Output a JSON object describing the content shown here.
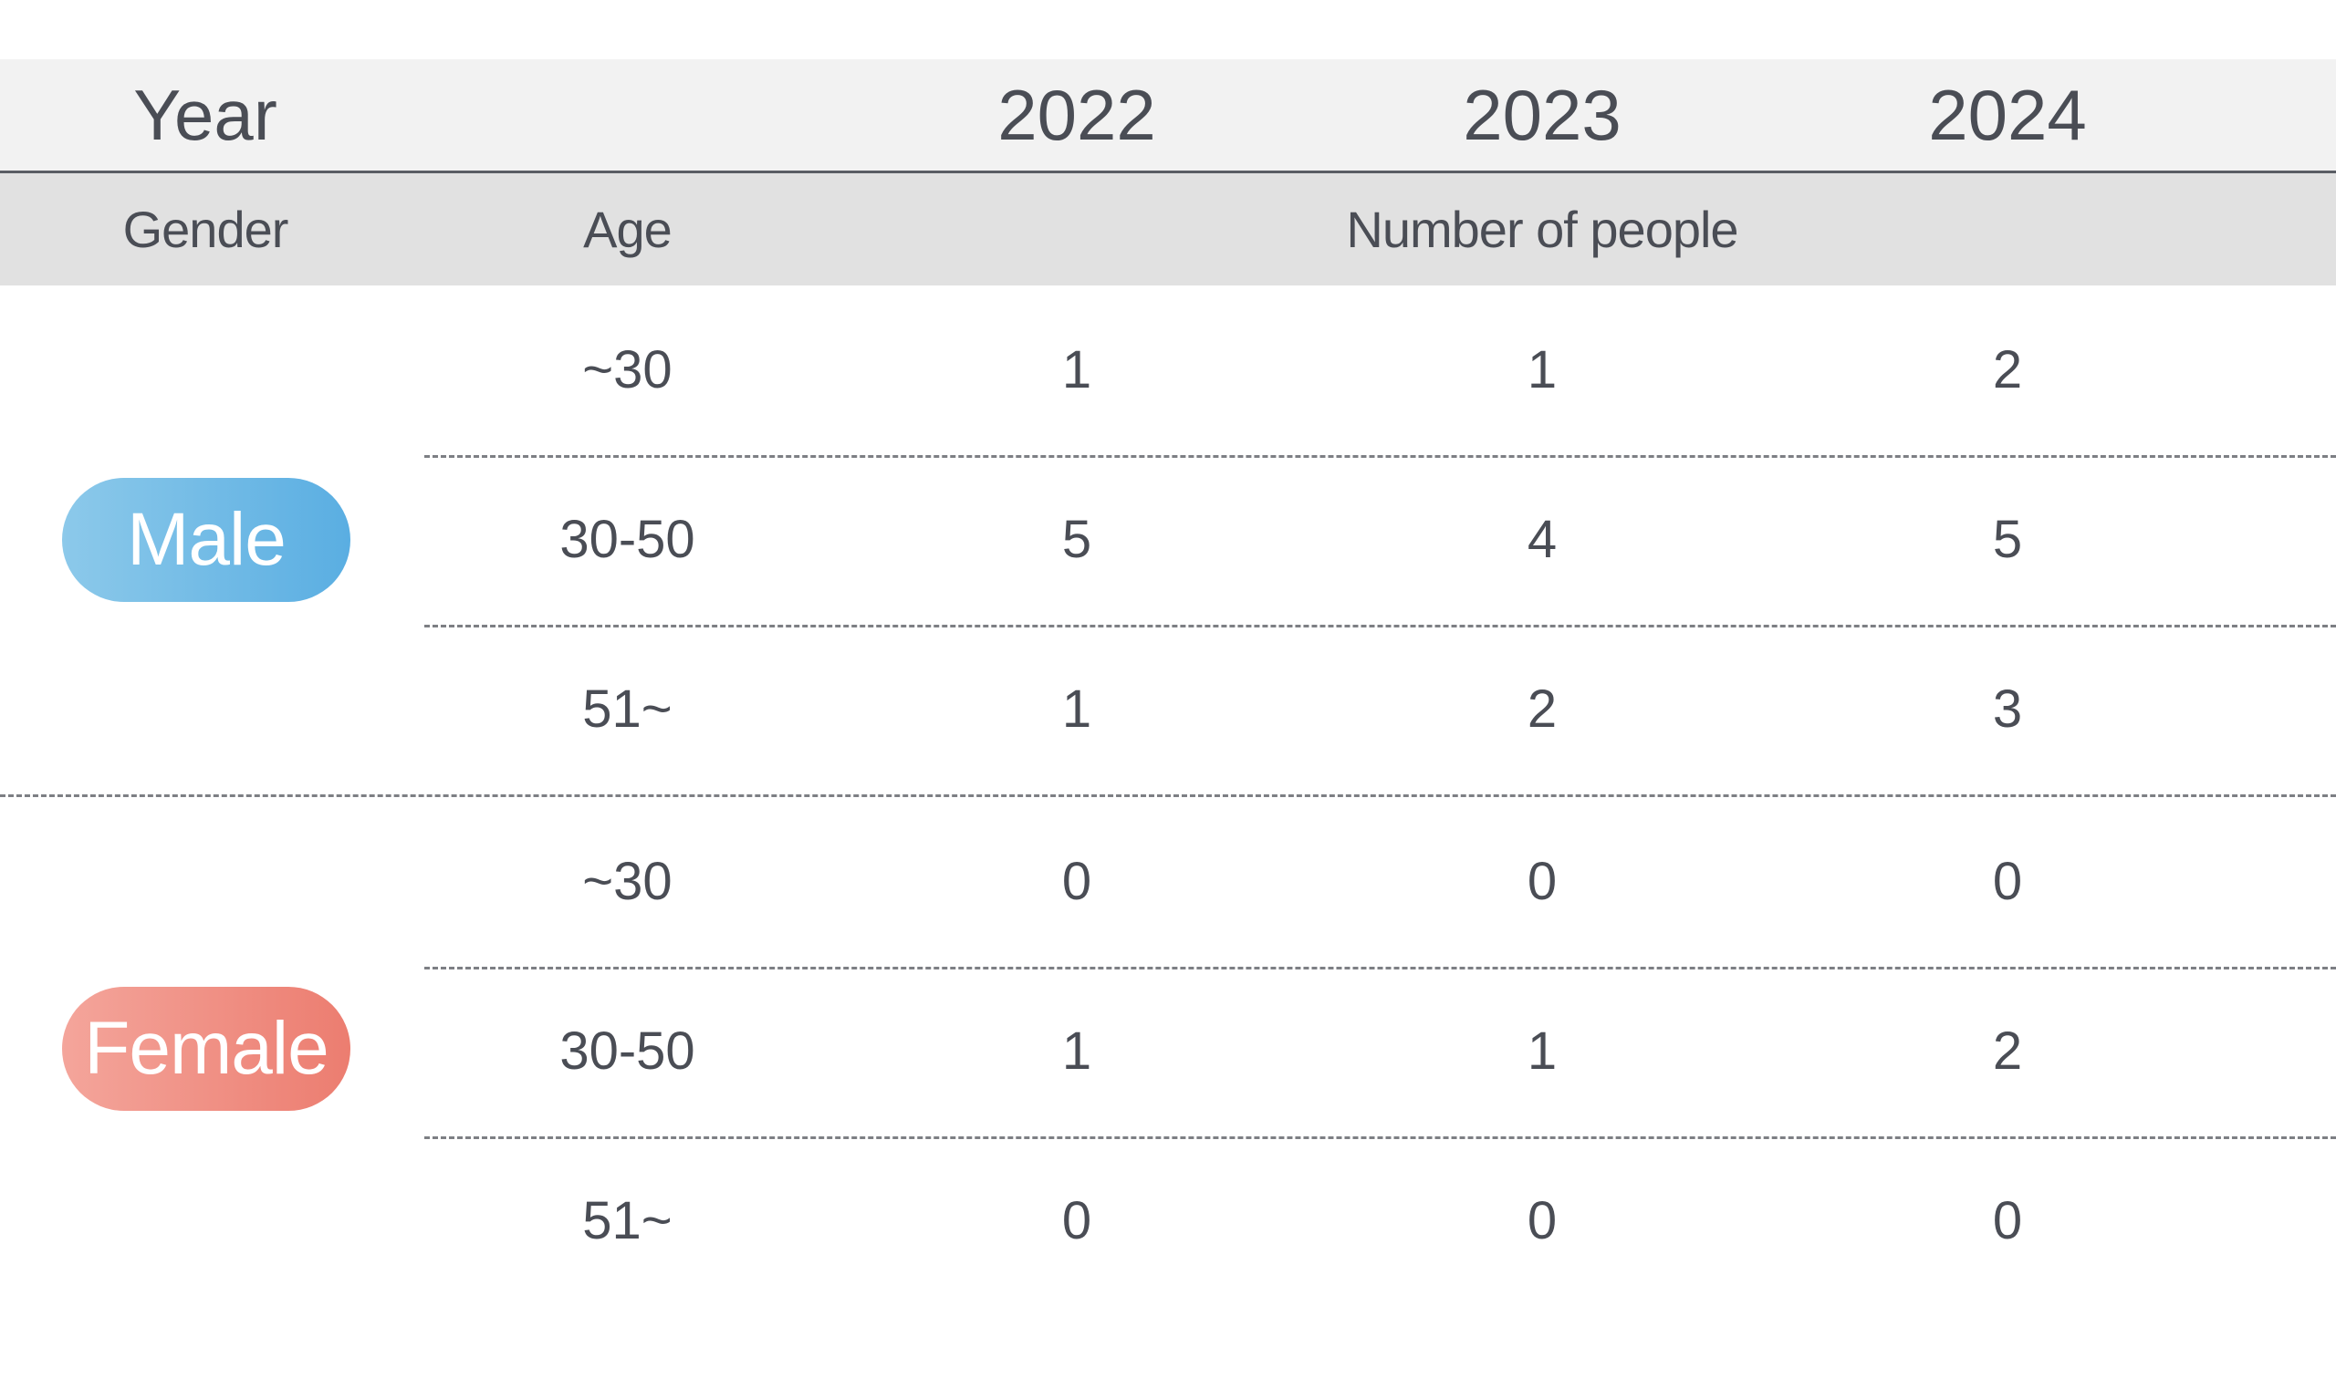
{
  "header": {
    "year_label": "Year",
    "years": [
      "2022",
      "2023",
      "2024"
    ]
  },
  "subheader": {
    "gender_label": "Gender",
    "age_label": "Age",
    "count_label": "Number of people"
  },
  "groups": [
    {
      "gender": "Male",
      "color": "#5aaee2",
      "rows": [
        {
          "age": "~30",
          "values": [
            "1",
            "1",
            "2"
          ]
        },
        {
          "age": "30-50",
          "values": [
            "5",
            "4",
            "5"
          ]
        },
        {
          "age": "51~",
          "values": [
            "1",
            "2",
            "3"
          ]
        }
      ]
    },
    {
      "gender": "Female",
      "color": "#ec7d70",
      "rows": [
        {
          "age": "~30",
          "values": [
            "0",
            "0",
            "0"
          ]
        },
        {
          "age": "30-50",
          "values": [
            "1",
            "1",
            "2"
          ]
        },
        {
          "age": "51~",
          "values": [
            "0",
            "0",
            "0"
          ]
        }
      ]
    }
  ]
}
